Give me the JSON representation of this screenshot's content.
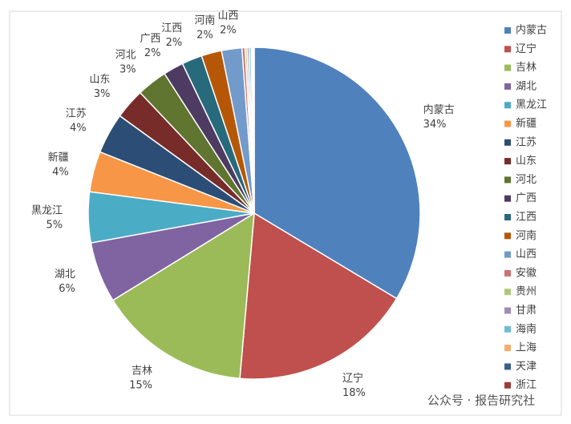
{
  "chart_data": {
    "type": "pie",
    "categories": [
      "内蒙古",
      "辽宁",
      "吉林",
      "湖北",
      "黑龙江",
      "新疆",
      "江苏",
      "山东",
      "河北",
      "广西",
      "江西",
      "河南",
      "山西",
      "安徽",
      "贵州",
      "甘肃",
      "海南",
      "上海",
      "天津",
      "浙江"
    ],
    "values": [
      34,
      18,
      15,
      6,
      5,
      4,
      4,
      3,
      3,
      2,
      2,
      2,
      2,
      0.3,
      0.2,
      0.2,
      0.2,
      0.1,
      0.1,
      0.1
    ],
    "value_labels": [
      "34%",
      "18%",
      "15%",
      "6%",
      "5%",
      "4%",
      "4%",
      "3%",
      "3%",
      "2%",
      "2%",
      "2%",
      "2%",
      null,
      null,
      null,
      null,
      null,
      null,
      null
    ],
    "colors": [
      "#4f81bd",
      "#c0504d",
      "#9bbb59",
      "#8064a2",
      "#4bacc6",
      "#f79646",
      "#2c4d75",
      "#772c2a",
      "#5f7530",
      "#4d3b62",
      "#276a7c",
      "#b65708",
      "#729aca",
      "#cd7371",
      "#afc97a",
      "#a08bb5",
      "#6fbdd3",
      "#f9ab6b",
      "#3a5f8f",
      "#9e3a37"
    ],
    "legend": "right",
    "watermark": "公众号 · 报告研究社"
  }
}
